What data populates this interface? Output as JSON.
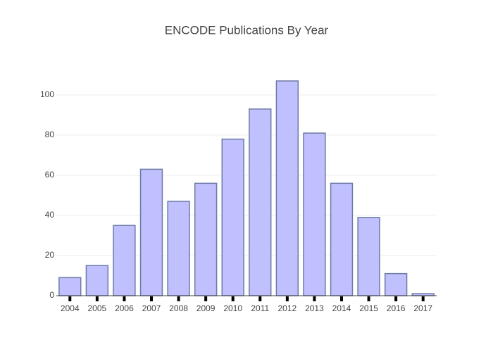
{
  "chart_data": {
    "type": "bar",
    "title": "ENCODE Publications By Year",
    "categories": [
      "2004",
      "2005",
      "2006",
      "2007",
      "2008",
      "2009",
      "2010",
      "2011",
      "2012",
      "2013",
      "2014",
      "2015",
      "2016",
      "2017"
    ],
    "values": [
      9,
      15,
      35,
      63,
      47,
      56,
      78,
      93,
      107,
      81,
      56,
      39,
      11,
      1
    ],
    "color": "#c0c0ff",
    "line_color": "#6c7aa6",
    "ylim": [
      0,
      112.6
    ],
    "yticks": [
      0,
      20,
      40,
      60,
      80,
      100
    ],
    "grid": true
  }
}
